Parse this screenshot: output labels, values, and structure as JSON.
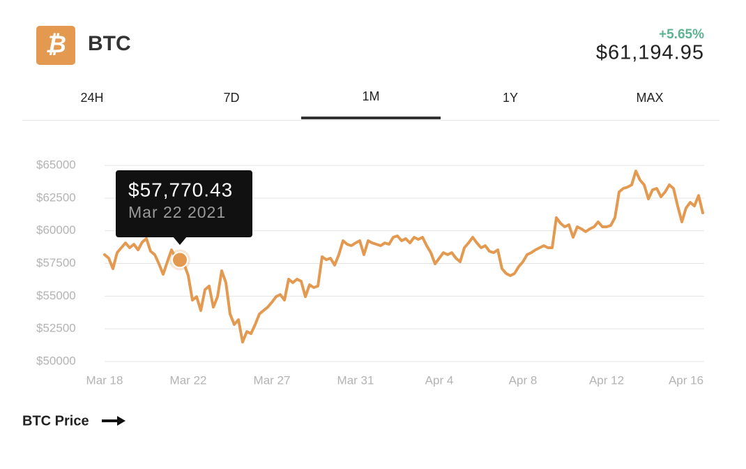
{
  "header": {
    "icon": "₿",
    "symbol": "BTC",
    "change": "+5.65%",
    "price": "$61,194.95"
  },
  "tabs": [
    "24H",
    "7D",
    "1M",
    "1Y",
    "MAX"
  ],
  "active_tab": "1M",
  "footer": {
    "link": "BTC Price"
  },
  "chart_data": {
    "type": "line",
    "color": "#e3994f",
    "grid": true,
    "tooltip": {
      "value": "$57,770.43",
      "date": "Mar 22 2021"
    },
    "xlim": [
      0,
      143
    ],
    "xticks": [
      {
        "value": 0,
        "label": "Mar 18"
      },
      {
        "value": 20,
        "label": "Mar 22"
      },
      {
        "value": 40,
        "label": "Mar 27"
      },
      {
        "value": 60,
        "label": "Mar 31"
      },
      {
        "value": 80,
        "label": "Apr 4"
      },
      {
        "value": 100,
        "label": "Apr 8"
      },
      {
        "value": 120,
        "label": "Apr 12"
      },
      {
        "value": 139,
        "label": "Apr 16"
      }
    ],
    "ylim": [
      50000,
      65000
    ],
    "yticks": [
      {
        "value": 50000,
        "label": "$50000"
      },
      {
        "value": 52500,
        "label": "$52500"
      },
      {
        "value": 55000,
        "label": "$55000"
      },
      {
        "value": 57500,
        "label": "$57500"
      },
      {
        "value": 60000,
        "label": "$60000"
      },
      {
        "value": 62500,
        "label": "$62500"
      },
      {
        "value": 65000,
        "label": "$65000"
      }
    ],
    "values": [
      58170,
      57900,
      57100,
      58330,
      58700,
      59070,
      58700,
      58970,
      58540,
      59130,
      59400,
      58430,
      58170,
      57470,
      56670,
      57630,
      58540,
      57900,
      57770.43,
      57470,
      56570,
      54700,
      54960,
      53900,
      55500,
      55770,
      54160,
      54960,
      56940,
      56030,
      53630,
      52830,
      53200,
      51490,
      52290,
      52130,
      52830,
      53630,
      53900,
      54160,
      54540,
      54960,
      55120,
      54700,
      56300,
      56030,
      56300,
      56140,
      54960,
      55870,
      55660,
      55770,
      58010,
      57790,
      57900,
      57370,
      58170,
      59240,
      58970,
      58860,
      59070,
      59240,
      58170,
      59240,
      59070,
      58970,
      58860,
      59070,
      58970,
      59500,
      59610,
      59240,
      59400,
      59070,
      59500,
      59340,
      59500,
      58860,
      58330,
      57470,
      57900,
      58330,
      58170,
      58330,
      57900,
      57630,
      58700,
      59070,
      59500,
      59070,
      58700,
      58860,
      58430,
      58330,
      58540,
      57100,
      56730,
      56570,
      56730,
      57260,
      57630,
      58170,
      58330,
      58540,
      58700,
      58860,
      58700,
      58700,
      61000,
      60570,
      60300,
      60460,
      59500,
      60300,
      60140,
      59930,
      60140,
      60300,
      60680,
      60300,
      60300,
      60410,
      61000,
      62970,
      63240,
      63340,
      63510,
      64570,
      63880,
      63510,
      62440,
      63130,
      63240,
      62600,
      62970,
      63510,
      63240,
      61900,
      60680,
      61740,
      62170,
      61900,
      62700,
      61370
    ]
  }
}
